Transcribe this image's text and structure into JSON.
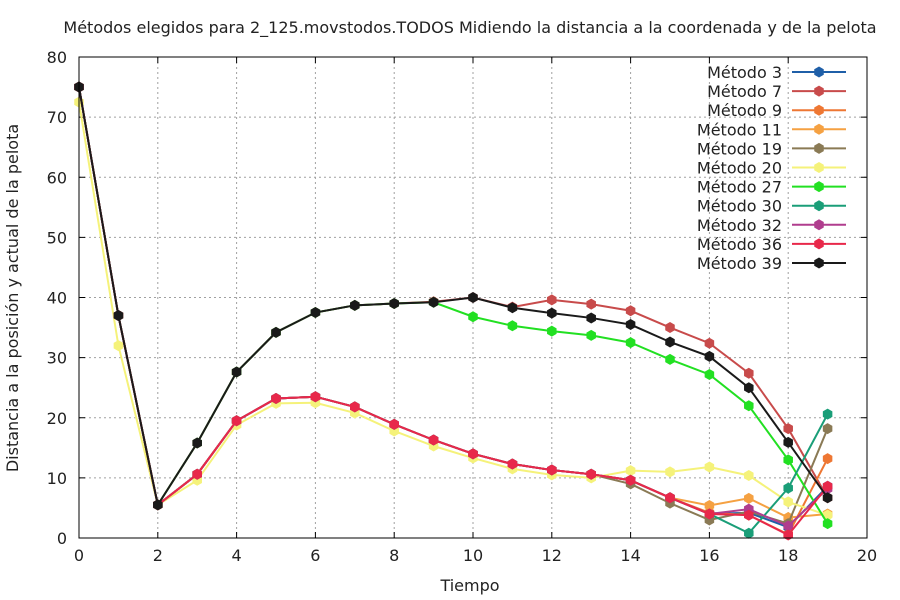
{
  "chart_data": {
    "type": "line",
    "title": "Métodos elegidos para 2_125.movstodos.TODOS Midiendo la distancia a la coordenada y de la pelota",
    "xlabel": "Tiempo",
    "ylabel": "Distancia a la posición y actual de la pelota",
    "xlim": [
      0,
      20
    ],
    "ylim": [
      0,
      80
    ],
    "xticks": [
      0,
      2,
      4,
      6,
      8,
      10,
      12,
      14,
      16,
      18,
      20
    ],
    "yticks": [
      0,
      10,
      20,
      30,
      40,
      50,
      60,
      70,
      80
    ],
    "grid": true,
    "legend_position": "top-right",
    "series": [
      {
        "name": "Método 3",
        "color": "#1f5fa8",
        "x": [
          0,
          1,
          2,
          3,
          4,
          5,
          6,
          7,
          8,
          9,
          10,
          11,
          12,
          13,
          14,
          15,
          16,
          17,
          18,
          19
        ],
        "y": [
          75,
          37,
          5.5,
          10.6,
          19.5,
          23.2,
          23.5,
          21.8,
          18.9,
          16.3,
          14,
          12.3,
          11.3,
          10.6,
          9.6,
          6.7,
          4,
          4.2,
          1.8,
          8.6
        ]
      },
      {
        "name": "Método 7",
        "color": "#c84b4b",
        "x": [
          0,
          1,
          2,
          3,
          4,
          5,
          6,
          7,
          8,
          9,
          10,
          11,
          12,
          13,
          14,
          15,
          16,
          17,
          18,
          19
        ],
        "y": [
          75,
          37,
          5.5,
          15.8,
          27.6,
          34.2,
          37.5,
          38.7,
          39,
          39.3,
          40,
          38.4,
          39.6,
          38.9,
          37.8,
          35,
          32.4,
          27.4,
          18.2,
          6.7
        ]
      },
      {
        "name": "Método 9",
        "color": "#ee7733",
        "x": [
          0,
          1,
          2,
          3,
          4,
          5,
          6,
          7,
          8,
          9,
          10,
          11,
          12,
          13,
          14,
          15,
          16,
          17,
          18,
          19
        ],
        "y": [
          75,
          37,
          5.5,
          10.6,
          19.5,
          23.2,
          23.5,
          21.8,
          18.9,
          16.3,
          14,
          12.3,
          11.3,
          10.6,
          9.6,
          6.7,
          4.2,
          3.8,
          0.6,
          13.2
        ]
      },
      {
        "name": "Método 11",
        "color": "#f5a142",
        "x": [
          0,
          1,
          2,
          3,
          4,
          5,
          6,
          7,
          8,
          9,
          10,
          11,
          12,
          13,
          14,
          15,
          16,
          17,
          18,
          19
        ],
        "y": [
          75,
          37,
          5.5,
          10.6,
          19.5,
          23.2,
          23.5,
          21.8,
          18.9,
          16.3,
          14,
          12.3,
          11.3,
          10.6,
          9.6,
          6.7,
          5.4,
          6.6,
          3.4,
          4
        ]
      },
      {
        "name": "Método 19",
        "color": "#8a7a55",
        "x": [
          0,
          1,
          2,
          3,
          4,
          5,
          6,
          7,
          8,
          9,
          10,
          11,
          12,
          13,
          14,
          15,
          16,
          17,
          18,
          19
        ],
        "y": [
          75,
          37,
          5.5,
          10.6,
          19.5,
          23.2,
          23.5,
          21.8,
          18.9,
          16.3,
          14,
          12.3,
          11.3,
          10.6,
          9,
          5.8,
          3,
          4.4,
          2.4,
          18.2
        ]
      },
      {
        "name": "Método 20",
        "color": "#f5f27a",
        "x": [
          0,
          1,
          2,
          3,
          4,
          5,
          6,
          7,
          8,
          9,
          10,
          11,
          12,
          13,
          14,
          15,
          16,
          17,
          18,
          19
        ],
        "y": [
          72.5,
          32,
          5.5,
          9.6,
          18.8,
          22.4,
          22.5,
          20.8,
          17.8,
          15.3,
          13.3,
          11.5,
          10.5,
          10,
          11.2,
          11,
          11.8,
          10.4,
          6,
          3.8
        ]
      },
      {
        "name": "Método 27",
        "color": "#22e022",
        "x": [
          0,
          1,
          2,
          3,
          4,
          5,
          6,
          7,
          8,
          9,
          10,
          11,
          12,
          13,
          14,
          15,
          16,
          17,
          18,
          19
        ],
        "y": [
          75,
          37,
          5.5,
          15.8,
          27.6,
          34.2,
          37.5,
          38.7,
          39,
          39.2,
          36.8,
          35.3,
          34.4,
          33.7,
          32.5,
          29.7,
          27.2,
          22,
          13,
          2.4
        ]
      },
      {
        "name": "Método 30",
        "color": "#1a9e78",
        "x": [
          0,
          1,
          2,
          3,
          4,
          5,
          6,
          7,
          8,
          9,
          10,
          11,
          12,
          13,
          14,
          15,
          16,
          17,
          18,
          19
        ],
        "y": [
          75,
          37,
          5.5,
          10.6,
          19.5,
          23.2,
          23.5,
          21.8,
          18.9,
          16.3,
          14,
          12.3,
          11.3,
          10.6,
          9.6,
          6.7,
          4,
          0.8,
          8.3,
          20.6
        ]
      },
      {
        "name": "Método 32",
        "color": "#b03d8e",
        "x": [
          0,
          1,
          2,
          3,
          4,
          5,
          6,
          7,
          8,
          9,
          10,
          11,
          12,
          13,
          14,
          15,
          16,
          17,
          18,
          19
        ],
        "y": [
          75,
          37,
          5.5,
          10.6,
          19.5,
          23.2,
          23.5,
          21.8,
          18.9,
          16.3,
          14,
          12.3,
          11.3,
          10.6,
          9.6,
          6.7,
          4,
          4.8,
          2,
          8.2
        ]
      },
      {
        "name": "Método 36",
        "color": "#e8284a",
        "x": [
          0,
          1,
          2,
          3,
          4,
          5,
          6,
          7,
          8,
          9,
          10,
          11,
          12,
          13,
          14,
          15,
          16,
          17,
          18,
          19
        ],
        "y": [
          75,
          37,
          5.5,
          10.6,
          19.5,
          23.2,
          23.5,
          21.8,
          18.9,
          16.3,
          14,
          12.3,
          11.3,
          10.6,
          9.6,
          6.7,
          4,
          3.8,
          0.5,
          8.6
        ]
      },
      {
        "name": "Método 39",
        "color": "#1a1a1a",
        "x": [
          0,
          1,
          2,
          3,
          4,
          5,
          6,
          7,
          8,
          9,
          10,
          11,
          12,
          13,
          14,
          15,
          16,
          17,
          18,
          19
        ],
        "y": [
          75,
          37,
          5.5,
          15.8,
          27.6,
          34.2,
          37.5,
          38.7,
          39,
          39.2,
          40,
          38.3,
          37.4,
          36.6,
          35.5,
          32.6,
          30.2,
          25,
          15.9,
          6.7
        ]
      }
    ]
  }
}
